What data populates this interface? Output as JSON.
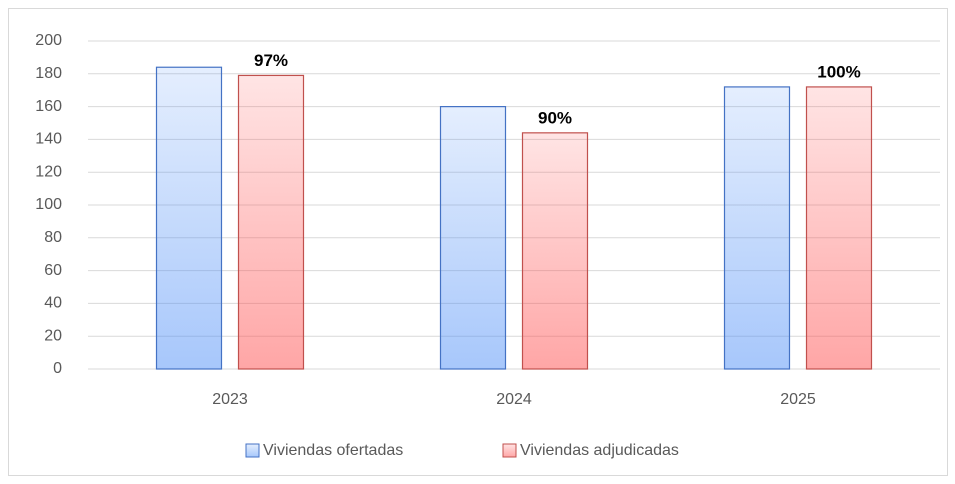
{
  "chart_data": {
    "type": "bar",
    "categories": [
      "2023",
      "2024",
      "2025"
    ],
    "series": [
      {
        "name": "Viviendas ofertadas",
        "color": "#4472c4",
        "values": [
          184,
          160,
          172
        ]
      },
      {
        "name": "Viviendas adjudicadas",
        "color": "#c0504d",
        "values": [
          179,
          144,
          172
        ]
      }
    ],
    "annotations": [
      "97%",
      "90%",
      "100%"
    ],
    "ylim": [
      0,
      200
    ],
    "yticks": [
      0,
      20,
      40,
      60,
      80,
      100,
      120,
      140,
      160,
      180,
      200
    ],
    "grid": true,
    "legend": "bottom"
  }
}
